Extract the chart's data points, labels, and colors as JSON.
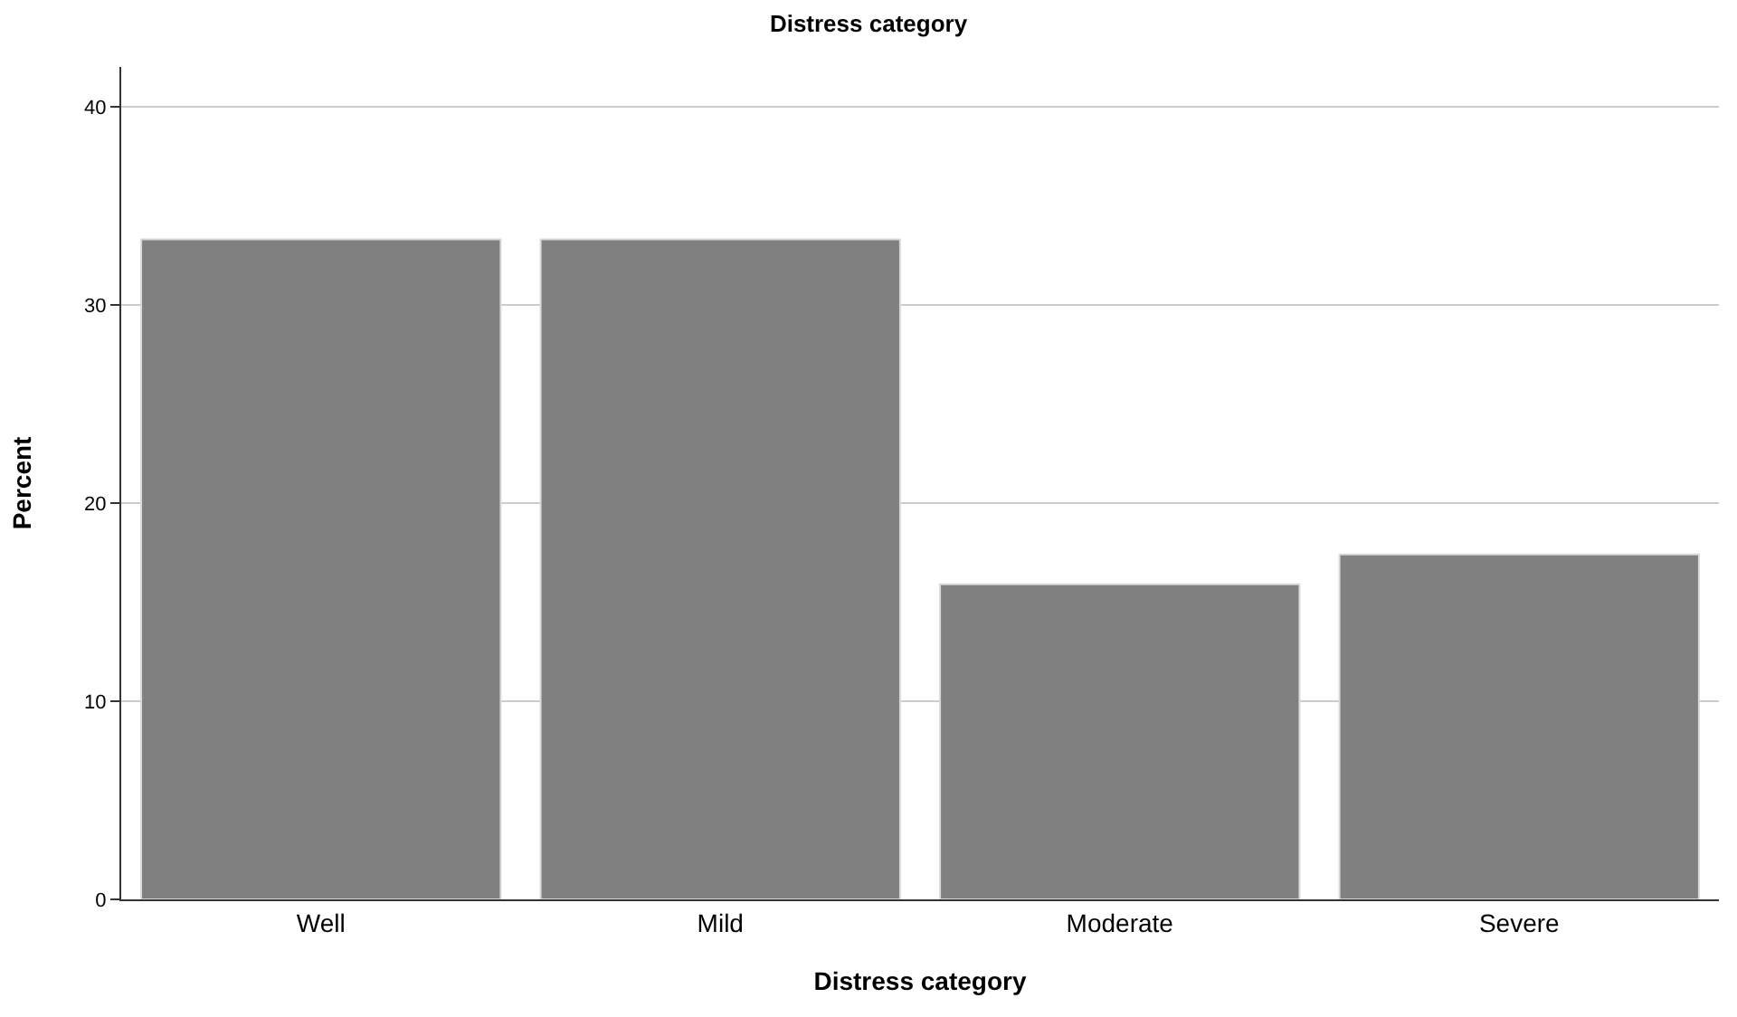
{
  "chart_data": {
    "type": "bar",
    "title": "Distress category",
    "xlabel": "Distress category",
    "ylabel": "Percent",
    "categories": [
      "Well",
      "Mild",
      "Moderate",
      "Severe"
    ],
    "values": [
      33.3,
      33.3,
      15.9,
      17.4
    ],
    "color": "#808080",
    "ylim": [
      0,
      42
    ],
    "yticks": [
      0,
      10,
      20,
      30,
      40
    ],
    "grid": "y",
    "legend": false
  }
}
